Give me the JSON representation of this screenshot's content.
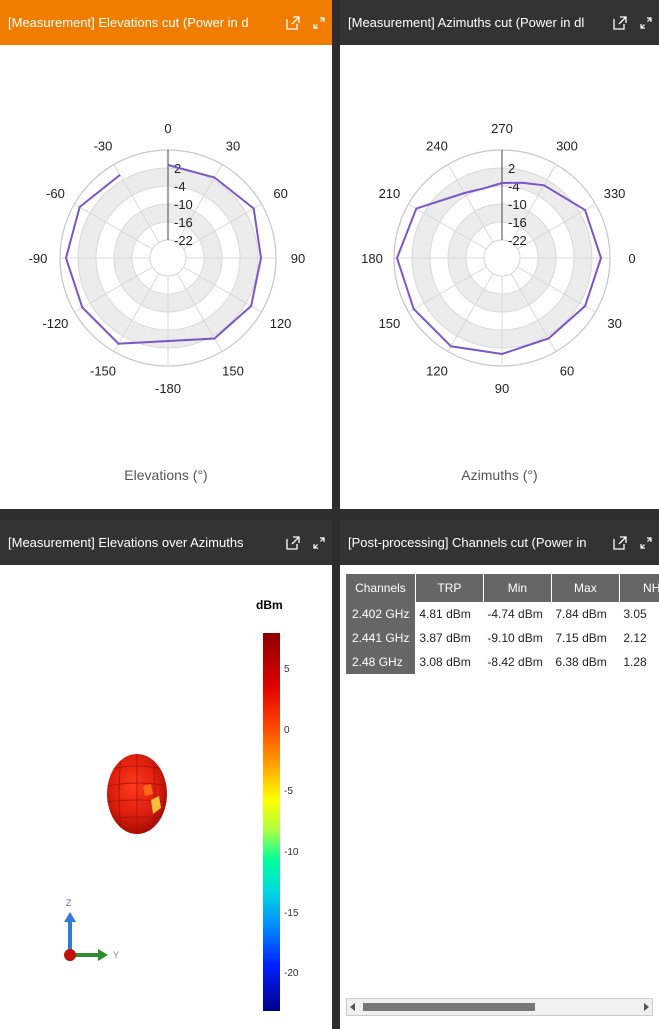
{
  "colors": {
    "active_title": "#f07d00",
    "title": "#333333",
    "trace": "#7b56c8"
  },
  "panels": {
    "elevations": {
      "title": "[Measurement] Elevations cut (Power in d",
      "xlabel": "Elevations (°)",
      "angle_labels": [
        "0",
        "30",
        "60",
        "90",
        "120",
        "150",
        "-180",
        "-150",
        "-120",
        "-90",
        "-60",
        "-30"
      ],
      "radial_labels": [
        "2",
        "-4",
        "-10",
        "-16",
        "-22"
      ]
    },
    "azimuths": {
      "title": "[Measurement] Azimuths cut (Power in dl",
      "xlabel": "Azimuths (°)",
      "angle_labels": [
        "270",
        "300",
        "330",
        "0",
        "30",
        "60",
        "90",
        "120",
        "150",
        "180",
        "210",
        "240"
      ],
      "radial_labels": [
        "2",
        "-4",
        "-10",
        "-16",
        "-22"
      ]
    },
    "elev_over_az": {
      "title": "[Measurement] Elevations over Azimuths",
      "colorbar_unit": "dBm",
      "colorbar_ticks": [
        "5",
        "0",
        "-5",
        "-10",
        "-15",
        "-20"
      ],
      "axis_z": "Z",
      "axis_y": "Y"
    },
    "channels": {
      "title": "[Post-processing] Channels cut (Power in",
      "columns": [
        "Channels",
        "TRP",
        "Min",
        "Max",
        "NHI"
      ],
      "rows": [
        [
          "2.402 GHz",
          "4.81 dBm",
          "-4.74 dBm",
          "7.84 dBm",
          "3.05"
        ],
        [
          "2.441 GHz",
          "3.87 dBm",
          "-9.10 dBm",
          "7.15 dBm",
          "2.12"
        ],
        [
          "2.48 GHz",
          "3.08 dBm",
          "-8.42 dBm",
          "6.38 dBm",
          "1.28"
        ]
      ]
    }
  },
  "chart_data": [
    {
      "type": "line",
      "subtype": "polar",
      "xlabel": "Elevations (°)",
      "theta_labels": [
        "0",
        "30",
        "60",
        "90",
        "120",
        "150",
        "-180",
        "-150",
        "-120",
        "-90",
        "-60",
        "-30"
      ],
      "r_ticks": [
        2,
        -4,
        -10,
        -16,
        -22
      ],
      "r_range": [
        -28,
        8
      ],
      "series": [
        {
          "theta": [
            0,
            30,
            60,
            90,
            120,
            150,
            -150,
            -120,
            -90,
            -60,
            -30
          ],
          "r": [
            3,
            3,
            5,
            3,
            4,
            3,
            5,
            5,
            6,
            6,
            4
          ]
        }
      ]
    },
    {
      "type": "line",
      "subtype": "polar",
      "xlabel": "Azimuths (°)",
      "theta_labels": [
        "270",
        "300",
        "330",
        "0",
        "30",
        "60",
        "90",
        "120",
        "150",
        "180",
        "210",
        "240"
      ],
      "r_ticks": [
        2,
        -4,
        -10,
        -16,
        -22
      ],
      "r_range": [
        -28,
        8
      ],
      "series": [
        {
          "theta": [
            270,
            285,
            300,
            330,
            0,
            30,
            60,
            90,
            120,
            150,
            180,
            210,
            240,
            255,
            270
          ],
          "r": [
            -3,
            -2,
            0,
            4,
            5,
            4,
            3,
            4,
            6,
            6,
            7,
            5,
            -3,
            -4,
            -3
          ]
        }
      ]
    },
    {
      "type": "heatmap",
      "subtype": "3d-radiation-pattern",
      "colorbar_label": "dBm",
      "colorbar_ticks": [
        5,
        0,
        -5,
        -10,
        -15,
        -20
      ],
      "colorbar_range": [
        -23,
        8
      ]
    }
  ]
}
